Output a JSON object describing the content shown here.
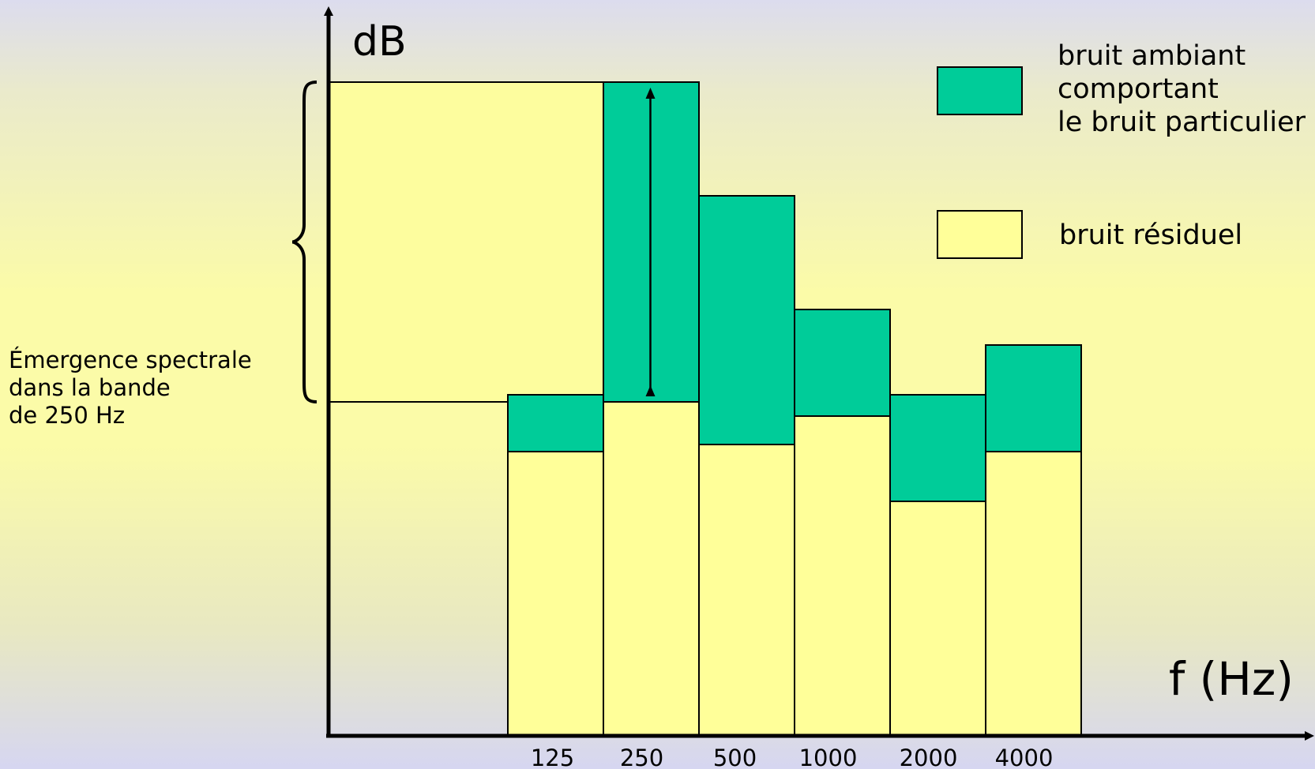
{
  "chart_data": {
    "type": "bar",
    "ylabel": "dB",
    "xlabel": "f (Hz)",
    "categories": [
      "125",
      "250",
      "500",
      "1000",
      "2000",
      "4000"
    ],
    "series": [
      {
        "name": "bruit résiduel",
        "values": [
          40,
          47,
          41,
          45,
          33,
          40
        ],
        "color": "#ffff99"
      },
      {
        "name": "bruit ambiant comportant le bruit particulier",
        "values": [
          48,
          92,
          76,
          60,
          48,
          55
        ],
        "color": "#00cc99"
      }
    ],
    "ylim": [
      0,
      100
    ],
    "grid": false,
    "legend": {
      "placement": "top-right",
      "entries": [
        {
          "lines": [
            "bruit ambiant",
            "comportant",
            "le bruit particulier"
          ],
          "color": "#00cc99"
        },
        {
          "lines": [
            "bruit résiduel"
          ],
          "color": "#ffff99"
        }
      ]
    },
    "annotation": {
      "band": "250",
      "lines": [
        "Émergence spectrale",
        "dans la bande",
        "de 250 Hz"
      ]
    }
  }
}
